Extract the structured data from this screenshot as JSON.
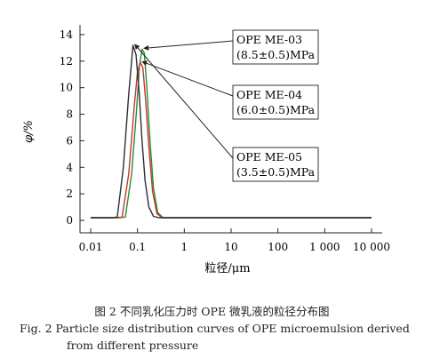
{
  "chart_data": {
    "type": "line",
    "xscale": "log",
    "xlim": [
      0.01,
      10000
    ],
    "ylim": [
      0,
      15
    ],
    "x_ticks": [
      "0.01",
      "0.1",
      "1",
      "10",
      "100",
      "1 000",
      "10 000"
    ],
    "y_ticks": [
      "0",
      "2",
      "4",
      "6",
      "8",
      "10",
      "12",
      "14"
    ],
    "xlabel": "粒径/μm",
    "ylabel": "φ/%",
    "series": [
      {
        "name": "OPE ME-03",
        "annotation": "(8.5±0.5)MPa",
        "color": "#2a8a3a",
        "x": [
          0.01,
          0.04,
          0.055,
          0.075,
          0.095,
          0.11,
          0.125,
          0.14,
          0.16,
          0.185,
          0.22,
          0.27,
          0.35,
          1,
          10,
          100,
          1000,
          10000
        ],
        "y": [
          0.2,
          0.2,
          0.25,
          3.5,
          8.2,
          11.6,
          12.9,
          12.6,
          9.8,
          6.0,
          2.4,
          0.6,
          0.2,
          0.2,
          0.2,
          0.2,
          0.2,
          0.2
        ]
      },
      {
        "name": "OPE ME-04",
        "annotation": "(6.0±0.5)MPa",
        "color": "#c0392b",
        "x": [
          0.01,
          0.035,
          0.047,
          0.065,
          0.085,
          0.1,
          0.115,
          0.13,
          0.15,
          0.175,
          0.21,
          0.26,
          0.34,
          1,
          10,
          100,
          1000,
          10000
        ],
        "y": [
          0.2,
          0.2,
          0.25,
          3.5,
          8.5,
          11.2,
          11.9,
          11.5,
          9.0,
          5.5,
          2.2,
          0.5,
          0.2,
          0.2,
          0.2,
          0.2,
          0.2,
          0.2
        ]
      },
      {
        "name": "OPE ME-05",
        "annotation": "(3.5±0.5)MPa",
        "color": "#2d2d38",
        "x": [
          0.01,
          0.028,
          0.037,
          0.05,
          0.065,
          0.08,
          0.093,
          0.108,
          0.125,
          0.145,
          0.175,
          0.22,
          0.29,
          1,
          10,
          100,
          1000,
          10000
        ],
        "y": [
          0.2,
          0.2,
          0.25,
          4.0,
          9.5,
          13.2,
          12.5,
          9.8,
          6.0,
          3.0,
          1.0,
          0.3,
          0.2,
          0.2,
          0.2,
          0.2,
          0.2,
          0.2
        ]
      }
    ],
    "grid": false,
    "legend": "callout boxes top-right"
  },
  "caption": {
    "cn": "图 2   不同乳化压力时 OPE 微乳液的粒径分布图",
    "en_line1": "Fig. 2    Particle size distribution curves of OPE microemulsion derived",
    "en_line2": "from different pressure"
  }
}
